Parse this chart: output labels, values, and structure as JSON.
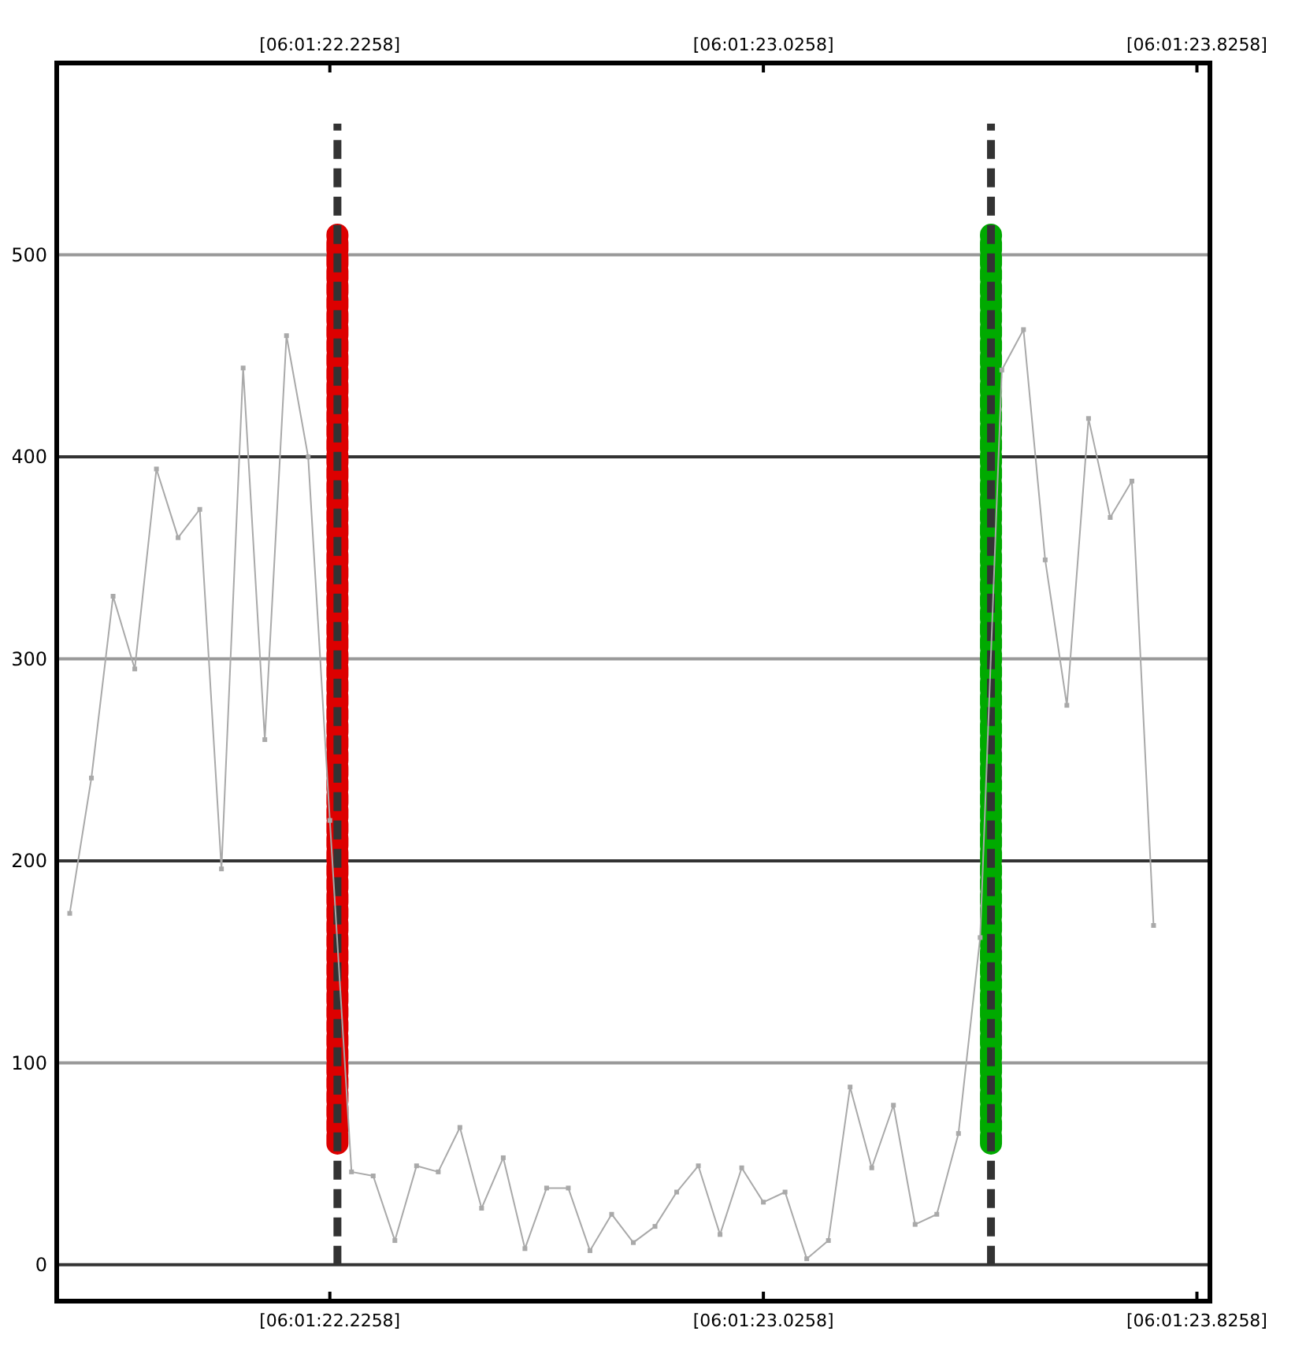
{
  "chart_data": {
    "type": "line",
    "categories": [
      null,
      null,
      null,
      null,
      null,
      null,
      null,
      null,
      null,
      null,
      null,
      null,
      "[06:01:22.2258]",
      null,
      null,
      null,
      null,
      null,
      null,
      null,
      null,
      null,
      null,
      null,
      null,
      null,
      null,
      null,
      null,
      null,
      null,
      null,
      "[06:01:23.0258]",
      null,
      null,
      null,
      null,
      null,
      null,
      null,
      null,
      null,
      null,
      null,
      null,
      null,
      null,
      null,
      null,
      null,
      null,
      null,
      "[06:01:23.8258]"
    ],
    "series": [
      {
        "color": "#a9a9a9",
        "values": [
          174,
          241,
          331,
          295,
          394,
          360,
          374,
          196,
          444,
          260,
          460,
          400,
          220,
          46,
          44,
          12,
          49,
          46,
          68,
          28,
          53,
          8,
          38,
          38,
          7,
          25,
          11,
          19,
          36,
          49,
          15,
          48,
          31,
          36,
          3,
          12,
          88,
          48,
          79,
          20,
          25,
          65,
          162,
          443,
          463,
          349,
          277,
          419,
          370,
          388,
          168,
          null,
          null
        ]
      }
    ],
    "ylim": [
      -18,
      595
    ],
    "yticks": [
      0,
      100,
      200,
      300,
      400,
      500
    ],
    "grid": "y",
    "marker": "square",
    "line_style": "solid"
  }
}
